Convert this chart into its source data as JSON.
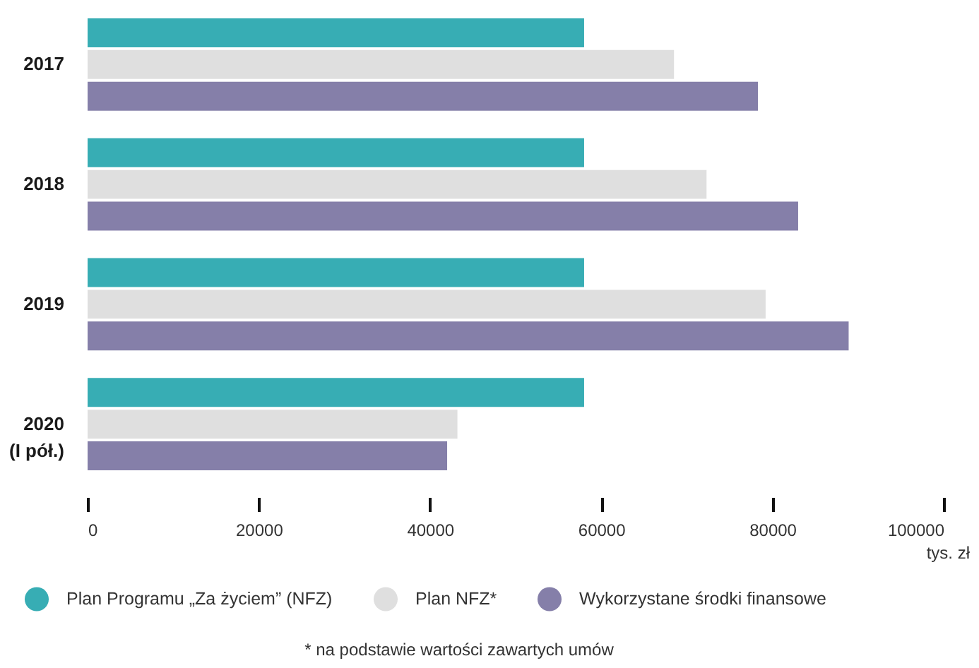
{
  "chart_data": {
    "type": "bar",
    "orientation": "horizontal",
    "categories": [
      "2017",
      "2018",
      "2019",
      "2020\n(I pół.)"
    ],
    "series": [
      {
        "name": "Plan Programu „Za życiem” (NFZ)",
        "color": "#37adb4",
        "values": [
          58000,
          58000,
          58000,
          58000
        ]
      },
      {
        "name": "Plan NFZ*",
        "color": "#dfdfdf",
        "values": [
          68500,
          72300,
          79200,
          43200
        ]
      },
      {
        "name": "Wykorzystane środki finansowe",
        "color": "#857fa9",
        "values": [
          78300,
          83000,
          88900,
          42000
        ]
      }
    ],
    "xlim": [
      0,
      100000
    ],
    "xticks": [
      0,
      20000,
      40000,
      60000,
      80000,
      100000
    ],
    "xlabel": "tys. zł",
    "legend": "bottom",
    "annotations": [
      "* na podstawie wartości zawartych umów"
    ]
  }
}
